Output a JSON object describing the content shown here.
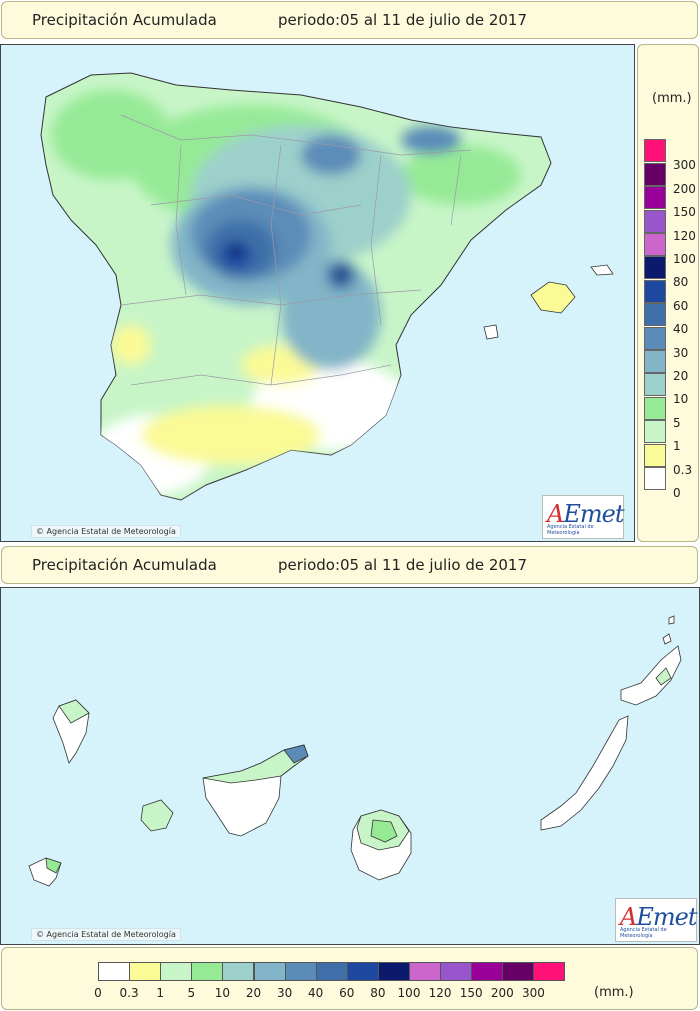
{
  "top_title": {
    "label": "Precipitación Acumulada",
    "period": "periodo:05 al 11 de julio de 2017"
  },
  "bottom_title": {
    "label": "Precipitación Acumulada",
    "period": "periodo:05 al 11 de julio de 2017"
  },
  "copyright": "Agencia Estatal de Meteorología",
  "logo": {
    "brand_a": "A",
    "brand_rest": "Emet",
    "subtitle": "Agencia Estatal de Meteorología"
  },
  "legend": {
    "unit": "(mm.)",
    "classes": [
      {
        "label": "0",
        "color": "#ffffff"
      },
      {
        "label": "0.3",
        "color": "#fafa96"
      },
      {
        "label": "1",
        "color": "#c8f5c8"
      },
      {
        "label": "5",
        "color": "#96ea96"
      },
      {
        "label": "10",
        "color": "#9dd0cb"
      },
      {
        "label": "20",
        "color": "#82b5c8"
      },
      {
        "label": "30",
        "color": "#5b8cb8"
      },
      {
        "label": "40",
        "color": "#3e6fa8"
      },
      {
        "label": "60",
        "color": "#1e48a0"
      },
      {
        "label": "80",
        "color": "#0c1a6e"
      },
      {
        "label": "100",
        "color": "#cc66cc"
      },
      {
        "label": "120",
        "color": "#9955cc"
      },
      {
        "label": "150",
        "color": "#990099"
      },
      {
        "label": "200",
        "color": "#660066"
      },
      {
        "label": "300",
        "color": "#ff1177"
      }
    ]
  },
  "colors": {
    "sea": "#d6f2fb",
    "panel": "#fdfbdc"
  }
}
